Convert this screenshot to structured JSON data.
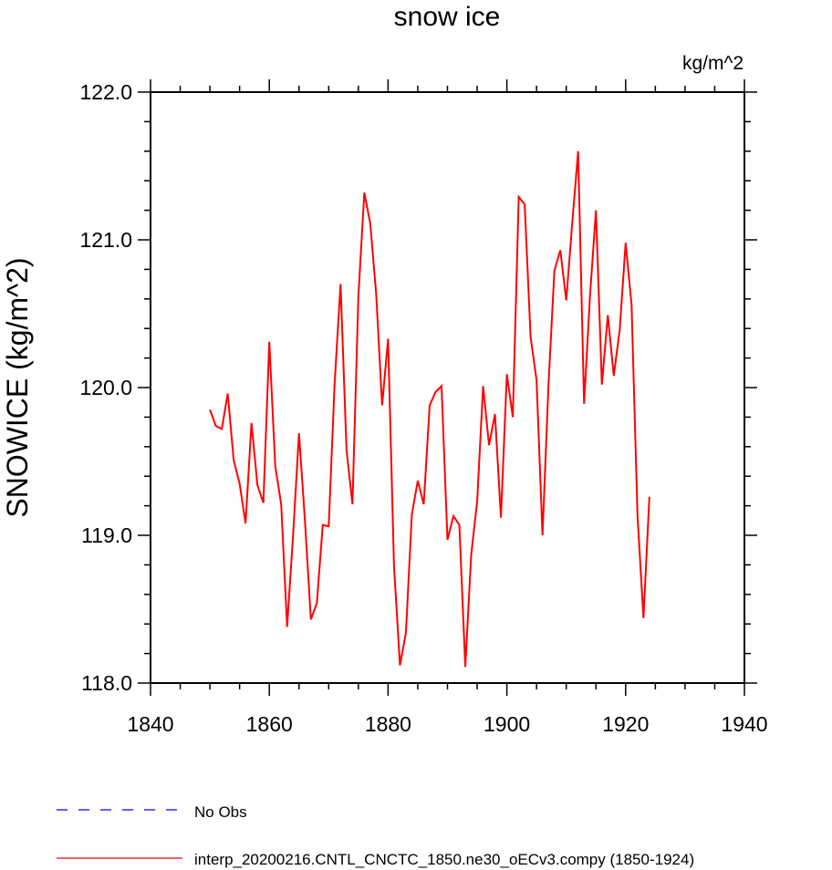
{
  "chart_data": {
    "type": "line",
    "title": "snow ice",
    "units": "kg/m^2",
    "ylabel": "SNOWICE  (kg/m^2)",
    "xlabel": "",
    "xlim": [
      1840,
      1940
    ],
    "ylim": [
      118.0,
      122.0
    ],
    "x_ticks": [
      "1840",
      "1860",
      "1880",
      "1900",
      "1920",
      "1940"
    ],
    "y_ticks": [
      "118.0",
      "119.0",
      "120.0",
      "121.0",
      "122.0"
    ],
    "grid": false,
    "legend_position": "bottom-left",
    "series": [
      {
        "name": "interp_20200216.CNTL_CNCTC_1850.ne30_oECv3.compy (1850-1924)",
        "color": "#ff0000",
        "x": [
          1850,
          1851,
          1852,
          1853,
          1854,
          1855,
          1856,
          1857,
          1858,
          1859,
          1860,
          1861,
          1862,
          1863,
          1864,
          1865,
          1866,
          1867,
          1868,
          1869,
          1870,
          1871,
          1872,
          1873,
          1874,
          1875,
          1876,
          1877,
          1878,
          1879,
          1880,
          1881,
          1882,
          1883,
          1884,
          1885,
          1886,
          1887,
          1888,
          1889,
          1890,
          1891,
          1892,
          1893,
          1894,
          1895,
          1896,
          1897,
          1898,
          1899,
          1900,
          1901,
          1902,
          1903,
          1904,
          1905,
          1906,
          1907,
          1908,
          1909,
          1910,
          1911,
          1912,
          1913,
          1914,
          1915,
          1916,
          1917,
          1918,
          1919,
          1920,
          1921,
          1922,
          1923,
          1924
        ],
        "values": [
          119.85,
          119.74,
          119.72,
          119.96,
          119.51,
          119.35,
          119.08,
          119.76,
          119.34,
          119.22,
          120.31,
          119.47,
          119.21,
          118.38,
          119.0,
          119.69,
          119.1,
          118.43,
          118.54,
          119.07,
          119.06,
          120.03,
          120.7,
          119.58,
          119.21,
          120.62,
          121.32,
          121.11,
          120.63,
          119.88,
          120.33,
          118.79,
          118.12,
          118.34,
          119.14,
          119.37,
          119.21,
          119.88,
          119.97,
          120.01,
          118.97,
          119.13,
          119.07,
          118.11,
          118.87,
          119.23,
          120.01,
          119.61,
          119.82,
          119.12,
          120.09,
          119.8,
          121.29,
          121.24,
          120.34,
          120.05,
          119.0,
          120.01,
          120.79,
          120.93,
          120.59,
          121.11,
          121.6,
          119.89,
          120.62,
          121.2,
          120.02,
          120.49,
          120.08,
          120.39,
          120.98,
          120.56,
          119.13,
          118.44,
          119.26
        ]
      },
      {
        "name": "No Obs",
        "color": "#0000ff",
        "dashed": true,
        "values": []
      }
    ]
  }
}
